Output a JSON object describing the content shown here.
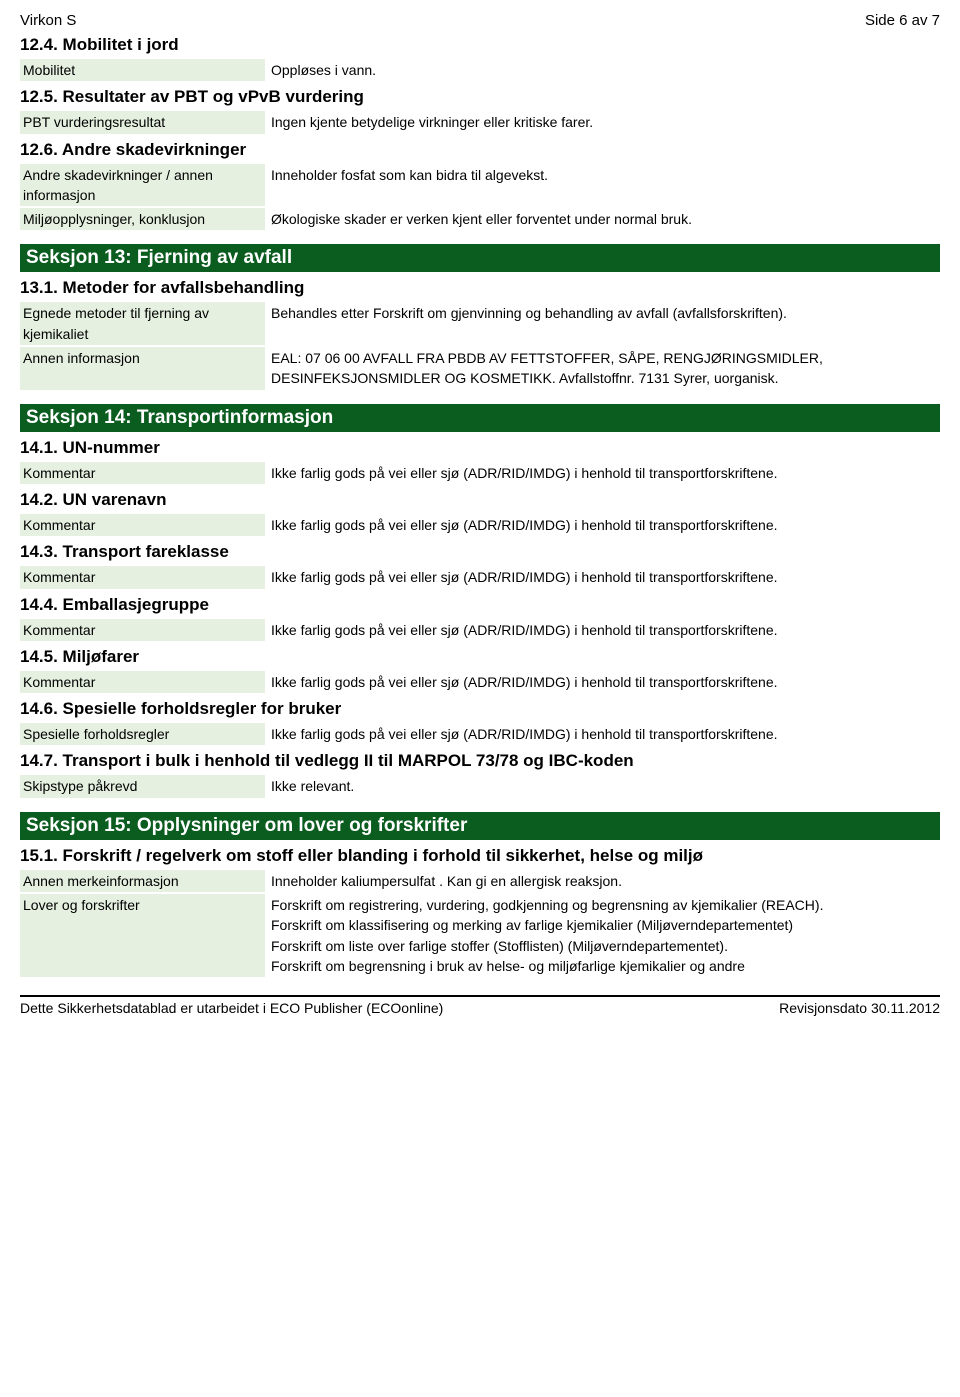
{
  "header": {
    "left": "Virkon S",
    "right": "Side 6 av 7"
  },
  "s12": {
    "h4": {
      "title": "12.4. Mobilitet i jord",
      "rows": [
        {
          "label": "Mobilitet",
          "value": "Oppløses i vann."
        }
      ]
    },
    "h5": {
      "title": "12.5. Resultater av PBT og vPvB vurdering",
      "rows": [
        {
          "label": "PBT vurderingsresultat",
          "value": "Ingen kjente betydelige virkninger eller kritiske farer."
        }
      ]
    },
    "h6": {
      "title": "12.6. Andre skadevirkninger",
      "rows": [
        {
          "label": "Andre skadevirkninger / annen informasjon",
          "value": "Inneholder fosfat som kan bidra til algevekst."
        },
        {
          "label": "Miljøopplysninger, konklusjon",
          "value": "Økologiske skader er verken kjent eller forventet under normal bruk."
        }
      ]
    }
  },
  "s13": {
    "bar": "Seksjon 13: Fjerning av avfall",
    "h1": {
      "title": "13.1. Metoder for avfallsbehandling",
      "rows": [
        {
          "label": "Egnede metoder til fjerning av kjemikaliet",
          "value": "Behandles etter Forskrift om gjenvinning og behandling av avfall (avfallsforskriften)."
        },
        {
          "label": "Annen informasjon",
          "value": "EAL: 07 06 00 AVFALL FRA PBDB AV FETTSTOFFER, SÅPE, RENGJØRINGSMIDLER, DESINFEKSJONSMIDLER OG KOSMETIKK. Avfallstoffnr. 7131 Syrer, uorganisk."
        }
      ]
    }
  },
  "s14": {
    "bar": "Seksjon 14: Transportinformasjon",
    "common_value": "Ikke farlig gods på vei eller sjø (ADR/RID/IMDG) i henhold til transportforskriftene.",
    "h1": {
      "title": "14.1. UN-nummer",
      "label": "Kommentar"
    },
    "h2": {
      "title": "14.2. UN varenavn",
      "label": "Kommentar"
    },
    "h3": {
      "title": "14.3. Transport fareklasse",
      "label": "Kommentar"
    },
    "h4": {
      "title": "14.4. Emballasjegruppe",
      "label": "Kommentar"
    },
    "h5": {
      "title": "14.5. Miljøfarer",
      "label": "Kommentar"
    },
    "h6": {
      "title": "14.6. Spesielle forholdsregler for bruker",
      "label": "Spesielle forholdsregler"
    },
    "h7": {
      "title": "14.7. Transport i bulk i henhold til vedlegg II til MARPOL 73/78 og IBC-koden",
      "rows": [
        {
          "label": "Skipstype påkrevd",
          "value": "Ikke relevant."
        }
      ]
    }
  },
  "s15": {
    "bar": "Seksjon 15: Opplysninger om lover og forskrifter",
    "h1": {
      "title": "15.1. Forskrift / regelverk om stoff eller blanding i forhold til sikkerhet, helse og miljø",
      "rows": [
        {
          "label": "Annen merkeinformasjon",
          "value": "Inneholder kaliumpersulfat . Kan gi en allergisk reaksjon."
        },
        {
          "label": "Lover og forskrifter",
          "value": "Forskrift om registrering, vurdering, godkjenning og begrensning av kjemikalier (REACH).\nForskrift om klassifisering og merking av farlige kjemikalier (Miljøverndepartementet)\nForskrift om liste over farlige stoffer (Stofflisten) (Miljøverndepartementet).\nForskrift om begrensning i bruk av helse- og miljøfarlige kjemikalier og andre"
        }
      ]
    }
  },
  "footer": {
    "left": "Dette Sikkerhetsdatablad er utarbeidet i ECO Publisher (ECOonline)",
    "right": "Revisjonsdato 30.11.2012"
  }
}
